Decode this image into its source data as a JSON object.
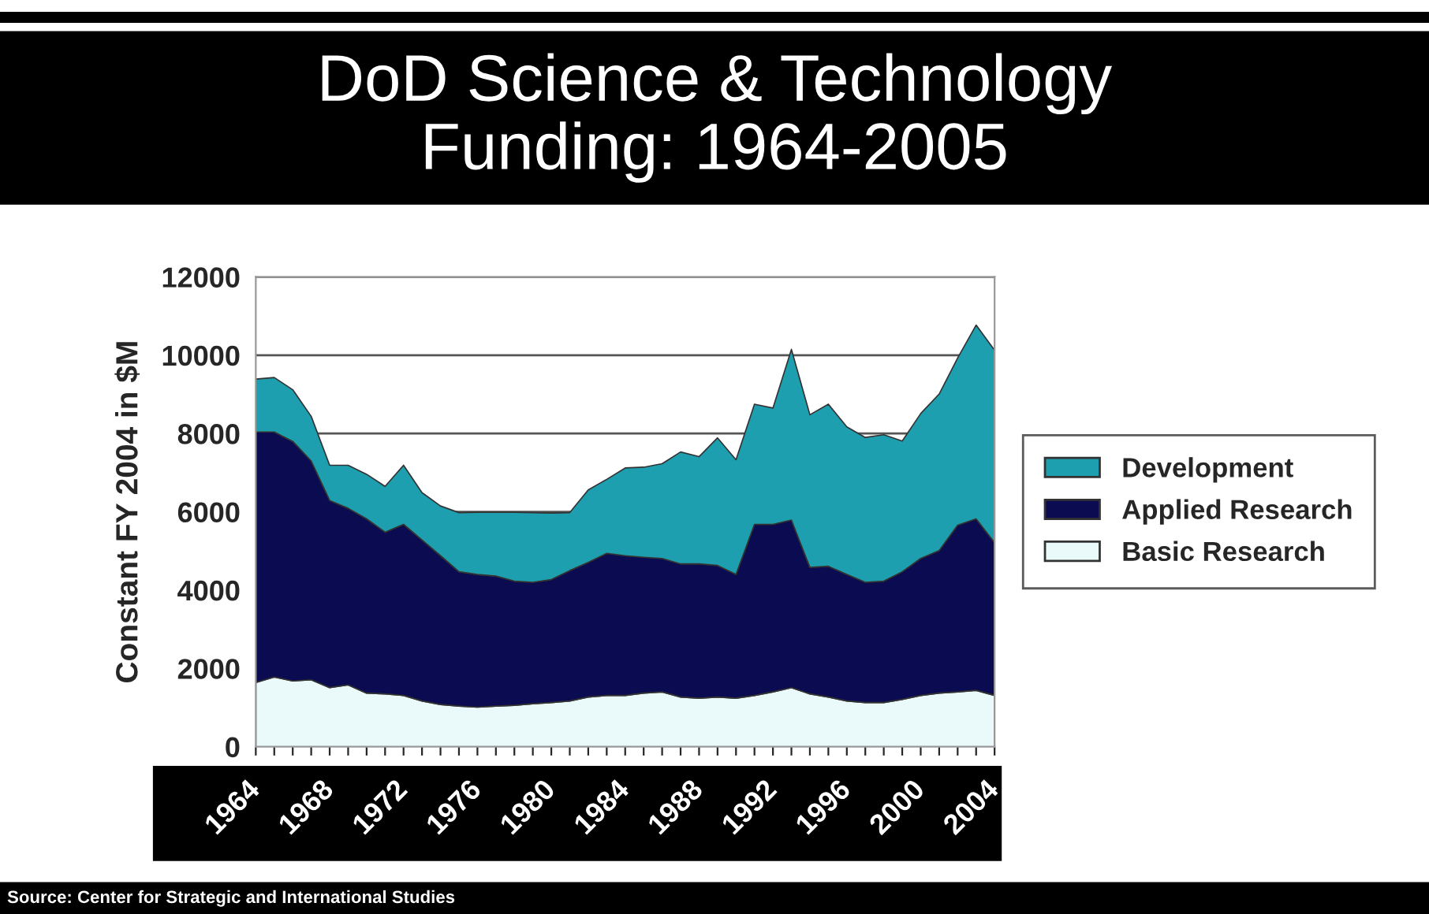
{
  "chart_data": {
    "type": "area",
    "stacked": true,
    "title": "DoD Science & Technology\nFunding: 1964-2005",
    "ylabel": "Constant FY 2004 in $M",
    "categories": [
      "1964",
      null,
      null,
      null,
      "1968",
      null,
      null,
      null,
      "1972",
      null,
      null,
      null,
      "1976",
      null,
      null,
      null,
      "1980",
      null,
      null,
      null,
      "1984",
      null,
      null,
      null,
      "1988",
      null,
      null,
      null,
      "1992",
      null,
      null,
      null,
      "1996",
      null,
      null,
      null,
      "2000",
      null,
      null,
      null,
      "2004"
    ],
    "series": [
      {
        "name": "Basic Research",
        "color": "#eafafb",
        "values": [
          1640,
          1780,
          1680,
          1710,
          1510,
          1580,
          1370,
          1350,
          1310,
          1170,
          1080,
          1040,
          1010,
          1040,
          1060,
          1100,
          1130,
          1170,
          1270,
          1310,
          1310,
          1370,
          1400,
          1270,
          1240,
          1270,
          1240,
          1310,
          1400,
          1510,
          1350,
          1270,
          1170,
          1130,
          1130,
          1210,
          1310,
          1370,
          1400,
          1440,
          1310
        ]
      },
      {
        "name": "Applied Research",
        "color": "#0b0b52",
        "values": [
          6400,
          6260,
          6120,
          5590,
          4780,
          4510,
          4450,
          4130,
          4370,
          4110,
          3800,
          3430,
          3390,
          3320,
          3170,
          3100,
          3140,
          3330,
          3440,
          3630,
          3570,
          3470,
          3410,
          3400,
          3430,
          3360,
          3160,
          4370,
          4280,
          4280,
          3230,
          3340,
          3230,
          3070,
          3100,
          3260,
          3500,
          3640,
          4260,
          4380,
          3900
        ]
      },
      {
        "name": "Development",
        "color": "#1e9fb0",
        "values": [
          1350,
          1390,
          1320,
          1140,
          900,
          1100,
          1140,
          1170,
          1510,
          1210,
          1270,
          1510,
          1590,
          1630,
          1760,
          1780,
          1700,
          1480,
          1850,
          1890,
          2240,
          2300,
          2420,
          2860,
          2740,
          3260,
          2930,
          3070,
          2970,
          4360,
          3900,
          4140,
          3770,
          3700,
          3740,
          3340,
          3700,
          4000,
          4270,
          4950,
          4920
        ]
      }
    ],
    "ylim": [
      0,
      12000
    ],
    "yticks": [
      0,
      2000,
      4000,
      6000,
      8000,
      10000,
      12000
    ],
    "grid": "y",
    "legend": "right",
    "annotations": [
      "Source: Center for Strategic and International Studies"
    ]
  }
}
